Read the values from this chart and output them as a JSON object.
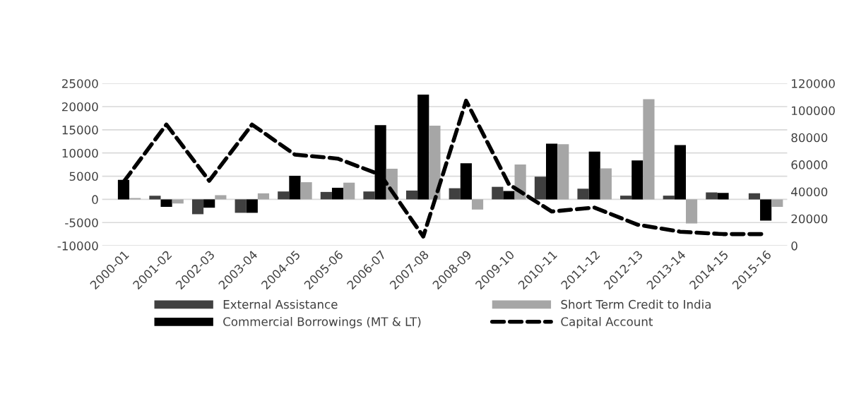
{
  "chart_data": {
    "type": "bar",
    "categories": [
      "2000-01",
      "2001-02",
      "2002-03",
      "2003-04",
      "2004-05",
      "2005-06",
      "2006-07",
      "2007-08",
      "2008-09",
      "2009-10",
      "2010-11",
      "2011-12",
      "2012-13",
      "2013-14",
      "2014-15",
      "2015-16"
    ],
    "series": [
      {
        "name": "External Assistance",
        "color": "#404040",
        "values": [
          null,
          800,
          -3200,
          -2900,
          1700,
          1600,
          1700,
          1900,
          2400,
          2700,
          4900,
          2300,
          800,
          800,
          1500,
          1300
        ]
      },
      {
        "name": "Commercial Borrowings (MT & LT)",
        "color": "#000000",
        "values": [
          4200,
          -1600,
          -1800,
          -2900,
          5100,
          2500,
          16000,
          22600,
          7800,
          1800,
          12000,
          10300,
          8400,
          11700,
          1400,
          -4600
        ]
      },
      {
        "name": "Short Term Credit to India",
        "color": "#a6a6a6",
        "values": [
          300,
          -900,
          900,
          1300,
          3700,
          3600,
          6600,
          15900,
          -2200,
          7500,
          11900,
          6700,
          21600,
          -5200,
          0,
          -1600
        ]
      },
      {
        "name": "Capital Account",
        "type": "line",
        "axis": "y2",
        "color": "#000000",
        "line_style": "dashed",
        "values": [
          47200,
          89600,
          48000,
          89600,
          67400,
          64400,
          52500,
          6800,
          107200,
          45400,
          25300,
          28200,
          15600,
          10400,
          8600,
          8600
        ]
      }
    ],
    "ylim": [
      -10000,
      25000
    ],
    "yticks": [
      -10000,
      -5000,
      0,
      5000,
      10000,
      15000,
      20000,
      25000
    ],
    "y2lim": [
      0,
      120000
    ],
    "y2ticks": [
      0,
      20000,
      40000,
      60000,
      80000,
      100000,
      120000
    ],
    "grid": "y",
    "legend": "bottom"
  }
}
